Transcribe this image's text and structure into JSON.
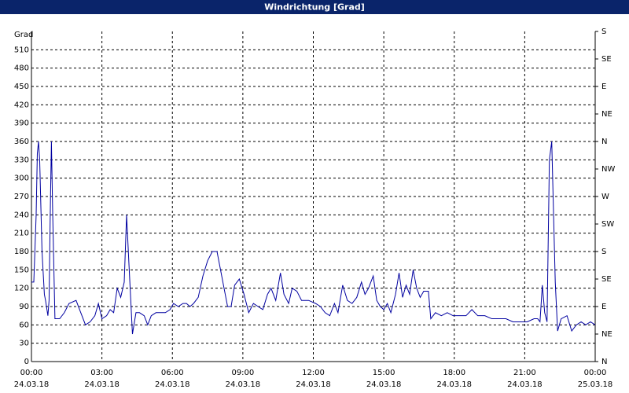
{
  "chart_data": {
    "type": "line",
    "title": "Windrichtung [Grad]",
    "y_label": "Grad",
    "grid": true,
    "xlim": [
      0,
      24
    ],
    "xticks": [
      {
        "value": 0,
        "label": [
          "00:00",
          "24.03.18"
        ]
      },
      {
        "value": 3,
        "label": [
          "03:00",
          "24.03.18"
        ]
      },
      {
        "value": 6,
        "label": [
          "06:00",
          "24.03.18"
        ]
      },
      {
        "value": 9,
        "label": [
          "09:00",
          "24.03.18"
        ]
      },
      {
        "value": 12,
        "label": [
          "12:00",
          "24.03.18"
        ]
      },
      {
        "value": 15,
        "label": [
          "15:00",
          "24.03.18"
        ]
      },
      {
        "value": 18,
        "label": [
          "18:00",
          "24.03.18"
        ]
      },
      {
        "value": 21,
        "label": [
          "21:00",
          "24.03.18"
        ]
      },
      {
        "value": 24,
        "label": [
          "00:00",
          "25.03.18"
        ]
      }
    ],
    "ylim": [
      0,
      540
    ],
    "yticks": [
      0,
      30,
      60,
      90,
      120,
      150,
      180,
      210,
      240,
      270,
      300,
      330,
      360,
      390,
      420,
      450,
      480,
      510
    ],
    "y2lim": [
      0,
      540
    ],
    "y2ticks": [
      {
        "value": 0,
        "label": "N"
      },
      {
        "value": 45,
        "label": "NE"
      },
      {
        "value": 90,
        "label": "E"
      },
      {
        "value": 135,
        "label": "SE"
      },
      {
        "value": 180,
        "label": "S"
      },
      {
        "value": 225,
        "label": "SW"
      },
      {
        "value": 270,
        "label": "W"
      },
      {
        "value": 315,
        "label": "NW"
      },
      {
        "value": 360,
        "label": "N"
      },
      {
        "value": 405,
        "label": "NE"
      },
      {
        "value": 450,
        "label": "E"
      },
      {
        "value": 495,
        "label": "SE"
      },
      {
        "value": 540,
        "label": "S"
      }
    ],
    "color": "#0000a0",
    "x": [
      0,
      0.1,
      0.2,
      0.25,
      0.3,
      0.35,
      0.45,
      0.55,
      0.6,
      0.7,
      0.75,
      0.8,
      0.85,
      0.9,
      1.0,
      1.2,
      1.4,
      1.6,
      1.9,
      2.1,
      2.3,
      2.5,
      2.7,
      2.85,
      3.0,
      3.2,
      3.35,
      3.5,
      3.65,
      3.8,
      3.95,
      4.05,
      4.15,
      4.3,
      4.45,
      4.6,
      4.8,
      4.95,
      5.1,
      5.3,
      5.5,
      5.7,
      5.9,
      6.05,
      6.25,
      6.45,
      6.6,
      6.75,
      6.9,
      7.1,
      7.3,
      7.5,
      7.7,
      7.9,
      8.05,
      8.2,
      8.35,
      8.5,
      8.65,
      8.85,
      9.05,
      9.25,
      9.45,
      9.65,
      9.85,
      10.05,
      10.2,
      10.4,
      10.6,
      10.75,
      10.95,
      11.1,
      11.3,
      11.5,
      11.8,
      12.1,
      12.3,
      12.5,
      12.7,
      12.9,
      13.05,
      13.25,
      13.45,
      13.65,
      13.85,
      14.05,
      14.2,
      14.35,
      14.55,
      14.7,
      14.85,
      15.0,
      15.15,
      15.3,
      15.5,
      15.65,
      15.8,
      15.95,
      16.1,
      16.25,
      16.4,
      16.55,
      16.7,
      16.9,
      17.0,
      17.2,
      17.45,
      17.7,
      17.95,
      18.2,
      18.5,
      18.75,
      19.0,
      19.3,
      19.6,
      19.9,
      20.2,
      20.5,
      20.8,
      21.1,
      21.4,
      21.55,
      21.65,
      21.75,
      21.85,
      21.95,
      22.05,
      22.15,
      22.3,
      22.4,
      22.55,
      22.8,
      23.0,
      23.2,
      23.4,
      23.6,
      23.8,
      24.0
    ],
    "values": [
      130,
      130,
      240,
      340,
      360,
      330,
      180,
      110,
      100,
      75,
      100,
      240,
      360,
      250,
      70,
      70,
      80,
      95,
      100,
      80,
      60,
      65,
      75,
      95,
      70,
      75,
      85,
      80,
      120,
      105,
      130,
      240,
      160,
      45,
      80,
      80,
      75,
      60,
      75,
      80,
      80,
      80,
      85,
      95,
      90,
      95,
      95,
      90,
      95,
      105,
      140,
      165,
      180,
      180,
      150,
      120,
      90,
      90,
      125,
      135,
      110,
      80,
      95,
      90,
      85,
      110,
      120,
      100,
      145,
      110,
      95,
      120,
      115,
      100,
      100,
      95,
      90,
      80,
      75,
      95,
      80,
      125,
      100,
      95,
      105,
      130,
      110,
      120,
      140,
      100,
      90,
      85,
      95,
      80,
      110,
      145,
      105,
      125,
      110,
      150,
      120,
      105,
      115,
      115,
      70,
      80,
      75,
      80,
      75,
      75,
      75,
      85,
      75,
      75,
      70,
      70,
      70,
      65,
      65,
      65,
      70,
      70,
      65,
      125,
      80,
      65,
      330,
      360,
      130,
      50,
      70,
      75,
      50,
      60,
      65,
      60,
      65,
      60
    ]
  }
}
